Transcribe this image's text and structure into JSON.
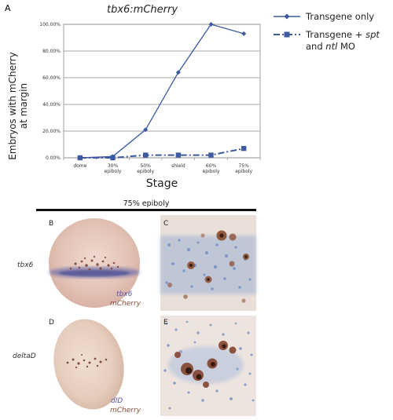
{
  "panels": {
    "a": {
      "letter": "A"
    },
    "b": {
      "letter": "B",
      "row_label": "tbx6",
      "probe": "tbx6",
      "reporter": "mCherry"
    },
    "c": {
      "letter": "C"
    },
    "d": {
      "letter": "D",
      "row_label": "deltaD",
      "probe": "dlD",
      "reporter": "mCherry"
    },
    "e": {
      "letter": "E"
    }
  },
  "stage_bar_label": "75% epiboly",
  "chart_data": {
    "type": "line",
    "title": "tbx6:mCherry",
    "xlabel": "Stage",
    "ylabel_line1": "Embryos with mCherry",
    "ylabel_line2": "at margin",
    "categories": [
      {
        "line1": "dome",
        "line2": ""
      },
      {
        "line1": "30%",
        "line2": "epiboly"
      },
      {
        "line1": "50%",
        "line2": "epiboly"
      },
      {
        "line1": "shield",
        "line2": ""
      },
      {
        "line1": "60%",
        "line2": "epiboly"
      },
      {
        "line1": "75%",
        "line2": "epiboly"
      }
    ],
    "yticks": [
      "0.00%",
      "20.00%",
      "40.00%",
      "60.00%",
      "80.00%",
      "100.00%"
    ],
    "ylim": [
      0,
      100
    ],
    "grid": true,
    "legend_position": "top-right",
    "series": [
      {
        "name": "Transgene only",
        "marker": "diamond",
        "style": "solid",
        "color": "#3d5aa0",
        "values": [
          0,
          1,
          21,
          64,
          100,
          93
        ]
      },
      {
        "name_parts": [
          "Transgene + ",
          "spt",
          " and ",
          "ntl",
          " MO"
        ],
        "marker": "square",
        "style": "dashed",
        "color": "#3d5aa0",
        "values": [
          0,
          0,
          2,
          2,
          2,
          7
        ]
      }
    ]
  }
}
